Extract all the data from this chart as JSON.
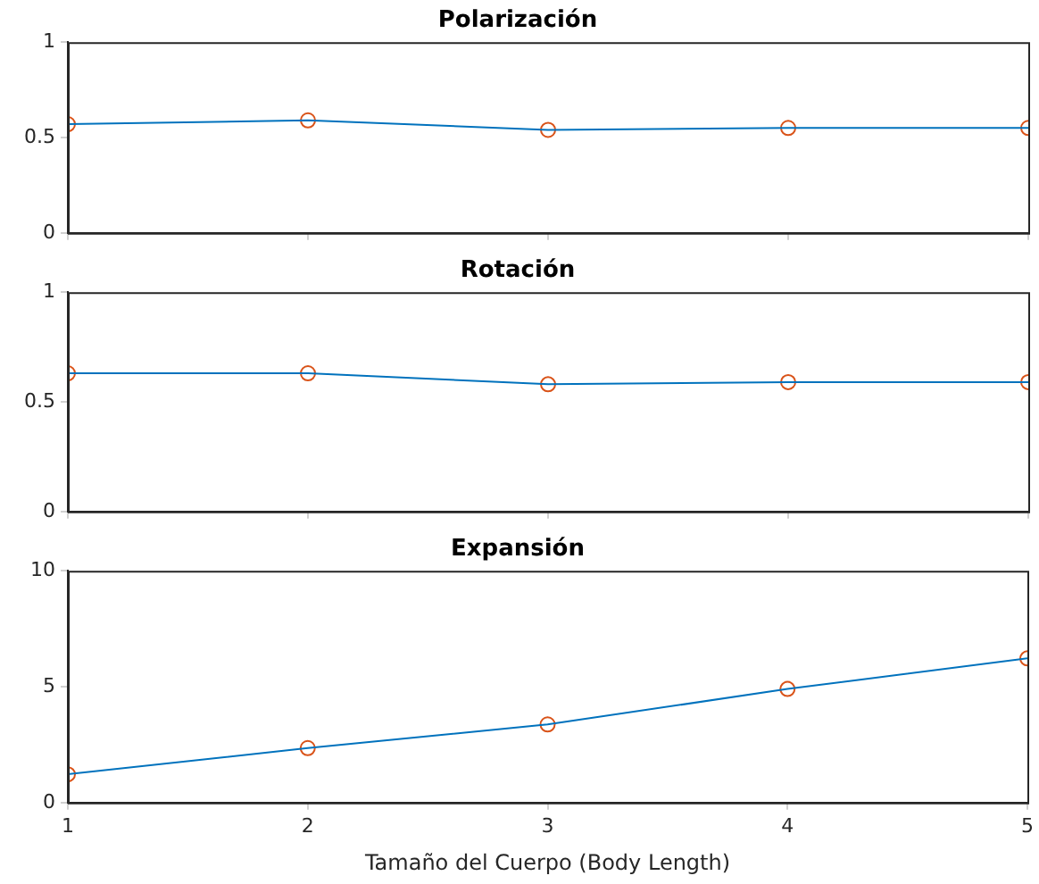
{
  "chart_data": [
    {
      "type": "line",
      "title": "Polarización",
      "x": [
        1,
        2,
        3,
        4,
        5
      ],
      "xlim": [
        1,
        5
      ],
      "xticks": [
        1,
        2,
        3,
        4,
        5
      ],
      "ylim": [
        0,
        1
      ],
      "yticks": [
        0,
        0.5,
        1
      ],
      "tick_labels": "y",
      "grid": false,
      "series": [
        {
          "type": "line",
          "color": "#0072bd",
          "marker": "none",
          "values": [
            0.57,
            0.59,
            0.54,
            0.55,
            0.55
          ]
        },
        {
          "type": "scatter",
          "color": "#d95319",
          "marker": "circle",
          "values": [
            0.57,
            0.59,
            0.54,
            0.55,
            0.55
          ]
        }
      ]
    },
    {
      "type": "line",
      "title": "Rotación",
      "x": [
        1,
        2,
        3,
        4,
        5
      ],
      "xlim": [
        1,
        5
      ],
      "xticks": [
        1,
        2,
        3,
        4,
        5
      ],
      "ylim": [
        0,
        1
      ],
      "yticks": [
        0,
        0.5,
        1
      ],
      "tick_labels": "y",
      "grid": false,
      "series": [
        {
          "type": "line",
          "color": "#0072bd",
          "marker": "none",
          "values": [
            0.63,
            0.63,
            0.58,
            0.59,
            0.59
          ]
        },
        {
          "type": "scatter",
          "color": "#d95319",
          "marker": "circle",
          "values": [
            0.63,
            0.63,
            0.58,
            0.59,
            0.59
          ]
        }
      ]
    },
    {
      "type": "line",
      "title": "Expansión",
      "xlabel": "Tamaño del Cuerpo (Body Length)",
      "x": [
        1,
        2,
        3,
        4,
        5
      ],
      "xlim": [
        1,
        5
      ],
      "xticks": [
        1,
        2,
        3,
        4,
        5
      ],
      "ylim": [
        0,
        10
      ],
      "yticks": [
        0,
        5,
        10
      ],
      "grid": false,
      "series": [
        {
          "type": "line",
          "color": "#0072bd",
          "marker": "none",
          "values": [
            1.22,
            2.35,
            3.37,
            4.9,
            6.22
          ]
        },
        {
          "type": "scatter",
          "color": "#d95319",
          "marker": "circle",
          "values": [
            1.22,
            2.35,
            3.37,
            4.9,
            6.22
          ]
        }
      ]
    }
  ]
}
